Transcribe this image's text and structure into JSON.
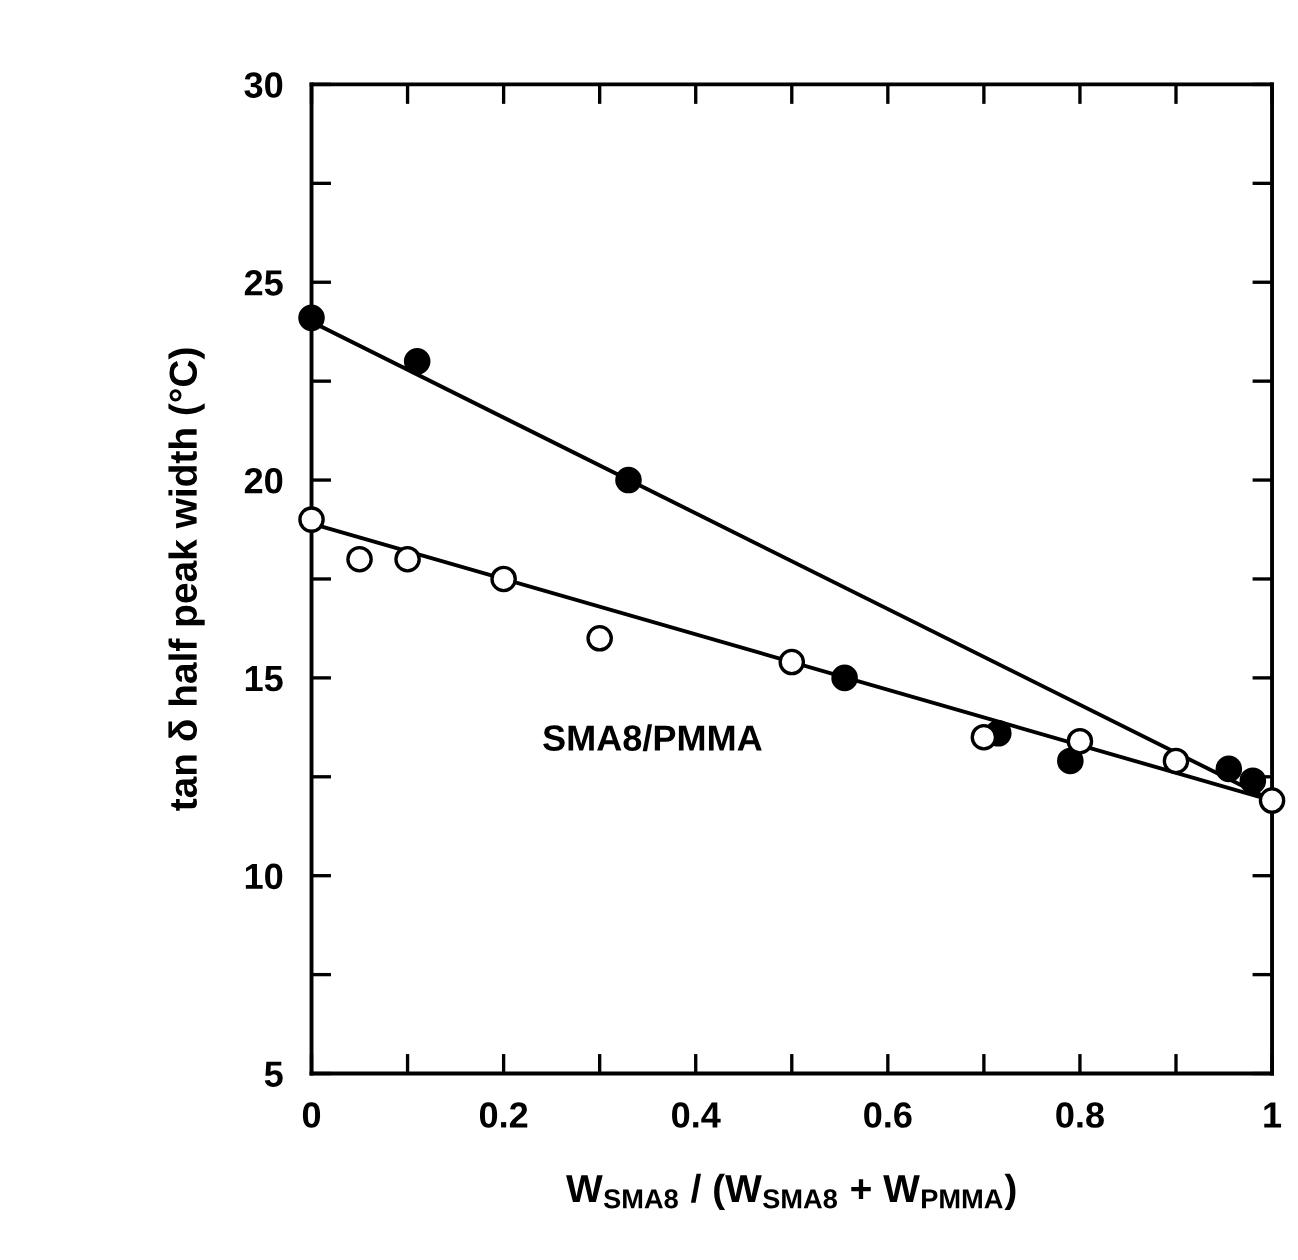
{
  "chart_data": {
    "type": "scatter",
    "xlabel": "W$_{SMA8}$ / (W$_{SMA8}$ + W$_{PMMA}$)",
    "ylabel": "tan δ half peak width (°C)",
    "series": [
      {
        "color": "#000000",
        "marker": "circle",
        "x": [
          0,
          0.11,
          0.33,
          0.555,
          0.715,
          0.79,
          0.955,
          0.98
        ],
        "values": [
          24.1,
          23.0,
          20.0,
          15.0,
          13.6,
          12.9,
          12.7,
          12.4
        ]
      },
      {
        "type": "line",
        "color": "#000000",
        "x": [
          0,
          1
        ],
        "values": [
          24.0,
          11.9
        ]
      },
      {
        "name": "SMA8/PMMA",
        "color": "#ffffff",
        "marker": "circle",
        "x": [
          0,
          0.05,
          0.1,
          0.2,
          0.3,
          0.5,
          0.7,
          0.8,
          0.9,
          1.0
        ],
        "values": [
          19.0,
          18.0,
          18.0,
          17.5,
          16.0,
          15.4,
          13.5,
          13.4,
          12.9,
          11.9
        ]
      },
      {
        "type": "line",
        "color": "#000000",
        "x": [
          0,
          1
        ],
        "values": [
          18.9,
          11.9
        ]
      }
    ],
    "xlim": [
      0,
      1
    ],
    "ylim": [
      5,
      30
    ],
    "xticks": [
      0,
      {
        "value": 0.1,
        "label": null
      },
      0.2,
      {
        "value": 0.3,
        "label": null
      },
      0.4,
      {
        "value": 0.5,
        "label": null
      },
      0.6,
      {
        "value": 0.7,
        "label": null
      },
      0.8,
      {
        "value": 0.9,
        "label": null
      },
      1
    ],
    "yticks": [
      5,
      {
        "value": 7.5,
        "label": null
      },
      10,
      {
        "value": 12.5,
        "label": null
      },
      15,
      {
        "value": 17.5,
        "label": null
      },
      20,
      {
        "value": 22.5,
        "label": null
      },
      25,
      {
        "value": 27.5,
        "label": null
      },
      30
    ],
    "grid": false,
    "legend": false
  }
}
